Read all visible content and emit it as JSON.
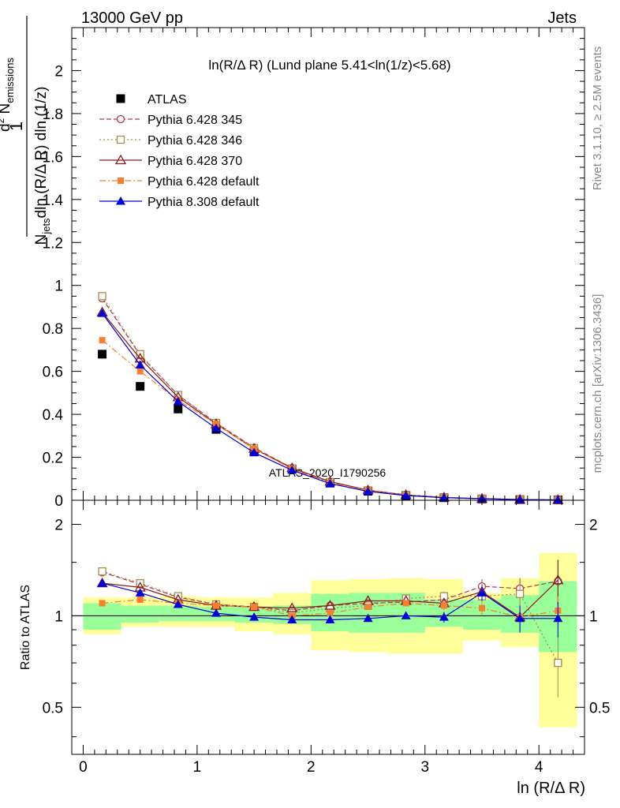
{
  "header": {
    "left": "13000 GeV pp",
    "right": "Jets"
  },
  "side_labels": {
    "top": "Rivet 3.1.10, ≥ 2.5M events",
    "bottom": "mcplots.cern.ch [arXiv:1306.3436]"
  },
  "watermark": "ATLAS_2020_I1790256",
  "colors": {
    "ATLAS": "#000000",
    "Pythia 6.428 345": "#b03a4a",
    "Pythia 6.428 346": "#a88a4c",
    "Pythia 6.428 370": "#8b1a1a",
    "Pythia 6.428 default": "#f77f2f",
    "Pythia 8.308 default": "#0000dd",
    "band_green": "#99ff99",
    "band_yellow": "#ffff99"
  },
  "chart_data": [
    {
      "type": "scatter",
      "panel": "main",
      "title": "ln(R/Δ R) (Lund plane 5.41<ln(1/z)<5.68)",
      "ylabel": "1/N_jets d²N_emissions / dln(R/Δ R) dln(1/z)",
      "xlim": [
        -0.1,
        4.4
      ],
      "ylim": [
        0,
        2.2
      ],
      "yticks": [
        "0",
        "0.2",
        "0.4",
        "0.6",
        "0.8",
        "1",
        "1.2",
        "1.4",
        "1.6",
        "1.8",
        "2"
      ],
      "x": [
        0.167,
        0.5,
        0.833,
        1.167,
        1.5,
        1.833,
        2.167,
        2.5,
        2.833,
        3.167,
        3.5,
        3.833,
        4.167
      ],
      "legend_position": "top-left",
      "series": [
        {
          "name": "ATLAS",
          "marker": "filled-square",
          "values": [
            0.68,
            0.53,
            0.425,
            0.33,
            0.225,
            0.145,
            0.08,
            0.042,
            0.022,
            0.012,
            0.006,
            0.003,
            0.0015
          ]
        },
        {
          "name": "Pythia 6.428 345",
          "marker": "open-circle",
          "dash": "6,3",
          "values": [
            0.94,
            0.675,
            0.49,
            0.36,
            0.245,
            0.15,
            0.086,
            0.046,
            0.024,
            0.013,
            0.0078,
            0.0038,
            0.002
          ]
        },
        {
          "name": "Pythia 6.428 346",
          "marker": "open-square",
          "dash": "2,3",
          "values": [
            0.95,
            0.68,
            0.49,
            0.36,
            0.243,
            0.148,
            0.085,
            0.046,
            0.025,
            0.0138,
            0.0075,
            0.0036,
            0.0011
          ]
        },
        {
          "name": "Pythia 6.428 370",
          "marker": "open-triangle",
          "dash": "",
          "values": [
            0.875,
            0.66,
            0.48,
            0.355,
            0.24,
            0.15,
            0.087,
            0.047,
            0.025,
            0.0132,
            0.0072,
            0.003,
            0.002
          ]
        },
        {
          "name": "Pythia 6.428 default",
          "marker": "filled-square-small",
          "dash": "8,3,2,3",
          "values": [
            0.745,
            0.6,
            0.465,
            0.355,
            0.24,
            0.145,
            0.082,
            0.045,
            0.024,
            0.013,
            0.0066,
            0.003,
            0.0016
          ]
        },
        {
          "name": "Pythia 8.308 default",
          "marker": "filled-triangle",
          "dash": "",
          "values": [
            0.87,
            0.63,
            0.46,
            0.335,
            0.222,
            0.14,
            0.078,
            0.041,
            0.022,
            0.0118,
            0.0073,
            0.003,
            0.0015
          ]
        }
      ]
    },
    {
      "type": "scatter",
      "panel": "ratio",
      "ylabel": "Ratio to ATLAS",
      "xlabel": "ln (R/Δ R)",
      "xlim": [
        -0.1,
        4.4
      ],
      "ylim": [
        0.35,
        2.4
      ],
      "log_y": true,
      "yticks": [
        "0.5",
        "1",
        "2"
      ],
      "xticks": [
        "0",
        "1",
        "2",
        "3",
        "4"
      ],
      "x": [
        0.167,
        0.5,
        0.833,
        1.167,
        1.5,
        1.833,
        2.167,
        2.5,
        2.833,
        3.167,
        3.5,
        3.833,
        4.167
      ],
      "bin_edges": [
        0,
        0.333,
        0.667,
        1.0,
        1.333,
        1.667,
        2.0,
        2.333,
        2.667,
        3.0,
        3.333,
        3.667,
        4.0,
        4.333
      ],
      "band_green": [
        [
          0.9,
          1.1
        ],
        [
          0.95,
          1.08
        ],
        [
          0.96,
          1.08
        ],
        [
          0.96,
          1.07
        ],
        [
          0.95,
          1.07
        ],
        [
          0.94,
          1.08
        ],
        [
          0.89,
          1.18
        ],
        [
          0.88,
          1.19
        ],
        [
          0.88,
          1.19
        ],
        [
          0.92,
          1.13
        ],
        [
          0.9,
          1.13
        ],
        [
          0.88,
          1.17
        ],
        [
          0.76,
          1.3
        ]
      ],
      "band_yellow": [
        [
          0.87,
          1.15
        ],
        [
          0.92,
          1.15
        ],
        [
          0.92,
          1.16
        ],
        [
          0.92,
          1.15
        ],
        [
          0.89,
          1.15
        ],
        [
          0.87,
          1.19
        ],
        [
          0.77,
          1.31
        ],
        [
          0.76,
          1.32
        ],
        [
          0.75,
          1.33
        ],
        [
          0.75,
          1.32
        ],
        [
          0.83,
          1.19
        ],
        [
          0.79,
          1.33
        ],
        [
          0.43,
          1.61
        ]
      ],
      "series": [
        {
          "name": "Pythia 6.428 345",
          "values": [
            1.39,
            1.27,
            1.15,
            1.09,
            1.07,
            1.04,
            1.08,
            1.1,
            1.11,
            1.13,
            1.25,
            1.23,
            1.3
          ],
          "err": [
            0.02,
            0.02,
            0.02,
            0.02,
            0.02,
            0.02,
            0.02,
            0.03,
            0.03,
            0.04,
            0.07,
            0.1,
            0.22
          ]
        },
        {
          "name": "Pythia 6.428 346",
          "values": [
            1.4,
            1.28,
            1.16,
            1.09,
            1.07,
            1.02,
            1.06,
            1.08,
            1.14,
            1.16,
            1.16,
            1.18,
            0.7
          ],
          "err": [
            0.02,
            0.02,
            0.02,
            0.02,
            0.02,
            0.02,
            0.02,
            0.03,
            0.03,
            0.04,
            0.06,
            0.1,
            0.16
          ]
        },
        {
          "name": "Pythia 6.428 370",
          "values": [
            1.28,
            1.24,
            1.13,
            1.08,
            1.07,
            1.06,
            1.08,
            1.12,
            1.12,
            1.1,
            1.2,
            0.99,
            1.31
          ],
          "err": [
            0.02,
            0.02,
            0.02,
            0.02,
            0.02,
            0.02,
            0.02,
            0.03,
            0.03,
            0.04,
            0.07,
            0.1,
            0.22
          ]
        },
        {
          "name": "Pythia 6.428 default",
          "values": [
            1.1,
            1.13,
            1.1,
            1.08,
            1.07,
            1.0,
            1.02,
            1.07,
            1.1,
            1.08,
            1.06,
            0.99,
            1.04
          ],
          "err": [
            0.02,
            0.02,
            0.02,
            0.02,
            0.02,
            0.02,
            0.02,
            0.03,
            0.03,
            0.04,
            0.06,
            0.1,
            0.12
          ]
        },
        {
          "name": "Pythia 8.308 default",
          "values": [
            1.28,
            1.19,
            1.09,
            1.02,
            0.99,
            0.97,
            0.97,
            0.98,
            1.0,
            0.99,
            1.19,
            0.98,
            0.98
          ],
          "err": [
            0.02,
            0.02,
            0.02,
            0.02,
            0.02,
            0.02,
            0.02,
            0.03,
            0.03,
            0.04,
            0.07,
            0.1,
            0.13
          ]
        }
      ]
    }
  ]
}
